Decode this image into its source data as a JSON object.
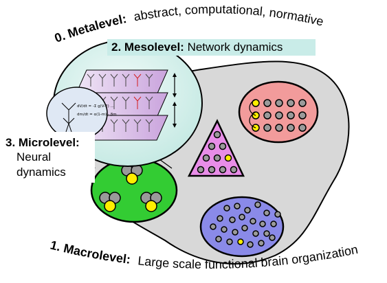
{
  "meta": {
    "number": "0. Metalevel:",
    "text": "abstract, computational, normative"
  },
  "meso": {
    "number": "2. Mesolevel:",
    "text": "Network dynamics"
  },
  "micro": {
    "number": "3. Microlevel:",
    "line1": "Neural",
    "line2": "dynamics"
  },
  "macro": {
    "number": "1. Macrolevel:",
    "text": "Large scale functional brain organization"
  },
  "equations": {
    "line1": "dV/dt = -Σ g(V-E) ...",
    "line2": "dm/dt = α(1-m) - βm"
  },
  "colors": {
    "brain": "#d8d8d8",
    "red_ellipse": "#f29b9b",
    "green_ellipse": "#33cc33",
    "blue_ellipse": "#8a8ae8",
    "triangle": "#e88de8",
    "lens": "#d9f2ee",
    "layer": "#d4b3e6",
    "neuron": "#9a9a9a",
    "active_neuron": "#ffee00"
  }
}
